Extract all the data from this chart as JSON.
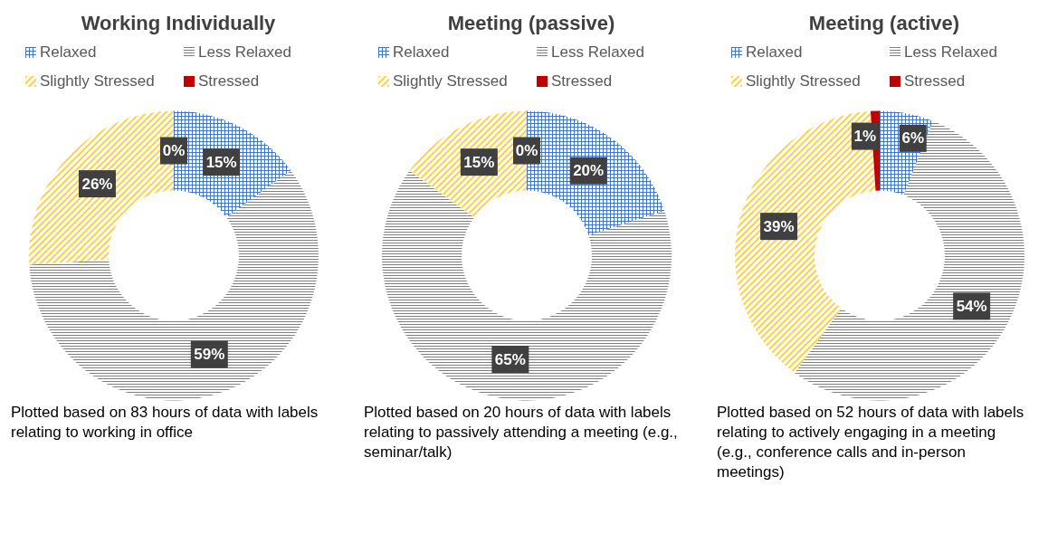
{
  "chart_data": [
    {
      "type": "donut",
      "title": "Working Individually",
      "categories": [
        "Relaxed",
        "Less Relaxed",
        "Slightly Stressed",
        "Stressed"
      ],
      "values": [
        15,
        59,
        26,
        0
      ],
      "value_labels": [
        "15%",
        "59%",
        "26%",
        "0%"
      ],
      "colors": [
        "#4472c4",
        "#7f7f7f",
        "#ffc000",
        "#c00000"
      ],
      "legend": "top",
      "annotations": [
        "Plotted based on 83 hours of data with labels relating to working in office"
      ]
    },
    {
      "type": "donut",
      "title": "Meeting (passive)",
      "categories": [
        "Relaxed",
        "Less Relaxed",
        "Slightly Stressed",
        "Stressed"
      ],
      "values": [
        20,
        65,
        15,
        0
      ],
      "value_labels": [
        "20%",
        "65%",
        "15%",
        "0%"
      ],
      "colors": [
        "#4472c4",
        "#7f7f7f",
        "#ffc000",
        "#c00000"
      ],
      "legend": "top",
      "annotations": [
        "Plotted based on 20 hours of data with labels relating to passively attending a meeting (e.g., seminar/talk)"
      ]
    },
    {
      "type": "donut",
      "title": "Meeting (active)",
      "categories": [
        "Relaxed",
        "Less Relaxed",
        "Slightly Stressed",
        "Stressed"
      ],
      "values": [
        6,
        54,
        39,
        1
      ],
      "value_labels": [
        "6%",
        "54%",
        "39%",
        "1%"
      ],
      "colors": [
        "#4472c4",
        "#7f7f7f",
        "#ffc000",
        "#c00000"
      ],
      "legend": "top",
      "annotations": [
        "Plotted based on 52 hours of data with labels relating to actively engaging in a meeting (e.g., conference calls and in-person meetings)"
      ]
    }
  ]
}
